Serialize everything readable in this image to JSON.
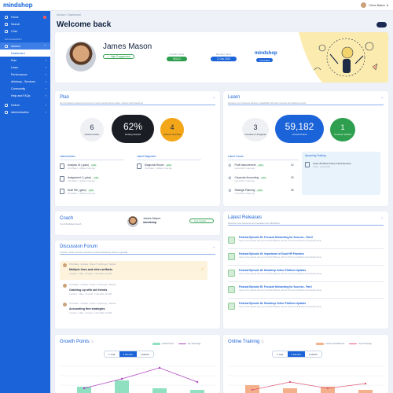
{
  "app": {
    "logo": "mindshop",
    "user_name": "Chris Baker"
  },
  "sidebar": {
    "top": [
      {
        "label": "Home",
        "badge": true
      },
      {
        "label": "Search"
      },
      {
        "label": "Chat"
      }
    ],
    "section": "MANAGEMENT",
    "advisor": {
      "label": "Advisor"
    },
    "sub": [
      {
        "label": "Dashboard"
      },
      {
        "label": "Plan"
      },
      {
        "label": "Learn"
      },
      {
        "label": "Performance"
      },
      {
        "label": "Advisory - Services"
      },
      {
        "label": "Community"
      },
      {
        "label": "Help and FAQs"
      }
    ],
    "bottom": [
      {
        "label": "Deliver"
      },
      {
        "label": "Administration"
      }
    ]
  },
  "breadcrumb": "Advisor / Dashboard",
  "page_title": "Welcome back",
  "profile": {
    "name": "James Mason",
    "engagement": "High Engagement",
    "growth_points_label": "Growth Points",
    "growth_points": "59,812",
    "member_since_label": "Member Since",
    "member_since": "2, Dec 2013",
    "brand": "mindshop",
    "brand_tag": "Accredited"
  },
  "plan": {
    "title": "Plan",
    "subtitle": "Get consistent support around your current performance plans, actions and blueprints",
    "actions_active": "6",
    "actions_active_label": "Actions Active",
    "getting_started": "62%",
    "getting_started_label": "Getting Started",
    "actions_overdue": "4",
    "actions_overdue_label": "Actions Overdue",
    "latest_actions_label": "Latest Actions",
    "latest_actions": [
      {
        "title": "Analysis 24 (.gdoc)",
        "pct": "+20%",
        "sub": "Chris Baker · Updated 1 day ago"
      },
      {
        "title": "Assignment 1 (.gdoc)",
        "pct": "+20%",
        "sub": "Chris Baker · Updated 1 day ago"
      },
      {
        "title": "Draft File (.gdoc)",
        "pct": "+20%",
        "sub": "Chris Baker · Updated 1 day ago"
      }
    ],
    "latest_diagnostic_label": "Latest Diagnostic",
    "latest_diagnostic": [
      {
        "title": "Diagnosis Report",
        "pct": "+20%",
        "sub": "Chris Baker · Updated 1 day ago"
      }
    ]
  },
  "learn": {
    "title": "Learn",
    "subtitle": "Develop your business advisory capabilities through courses and training events",
    "courses_in_progress": "3",
    "courses_in_progress_label": "Courses in Progress",
    "growth_points": "59,182",
    "growth_points_label": "Growth Points",
    "courses_verified": "1",
    "courses_verified_label": "Courses Verified",
    "latest_course_label": "Latest Course",
    "latest_course": [
      {
        "title": "Profit Improvement",
        "pct": "+20%",
        "sub": "Last activity: 3 days ago",
        "num": "10"
      },
      {
        "title": "Corporate Accounting",
        "pct": "+20%",
        "sub": "Last activity: 3 days ago",
        "num": "15"
      },
      {
        "title": "Strategic Planning",
        "pct": "+20%",
        "sub": "Last activity: 3 days ago",
        "num": "25"
      }
    ],
    "upcoming_label": "Upcoming Training",
    "upcoming": [
      {
        "title": "Learn All About Azure Cloud Servers",
        "sub": "Virtual · 11 Aug 2021"
      }
    ]
  },
  "coach": {
    "title": "Coach",
    "subtitle": "Your Mindshop Coach",
    "name": "James Mason",
    "brand": "mindshop",
    "button": "Your Coach"
  },
  "forum": {
    "title": "Discussion Forum",
    "subtitle": "Connect, share and find solutions of these Mindshop advisors globally",
    "items": [
      {
        "meta": "Chris Baker · Australia · Posted 7 months ago · Website",
        "title": "Multiple lines and other artifacts",
        "sub": "1 answer · 3 likes · 40 views · 2 Jan 2021, 2:01 AM"
      },
      {
        "meta": "Chris Baker · Australia · Posted 7 months ago · Website",
        "title": "Catching up with old friends",
        "sub": "1 answer · 3 likes · 40 views · 2 Jan 2021, 2:01 AM"
      },
      {
        "meta": "Chris Baker · Australia · Posted 7 months ago · Website",
        "title": "Accounting firm strategies",
        "sub": "1 answer · 3 likes · 40 views · 2 Jan 2021, 2:01 AM"
      }
    ]
  },
  "releases": {
    "title": "Latest Releases",
    "subtitle": "Discover new resources and releases from Mindshop",
    "items": [
      {
        "title": "Podcast Episode 50: Focused Networking for Success - Part II",
        "sub": "Listen to this episode with your host Brett Bristow, with Ian O'Connor of Allinson Accountants Group"
      },
      {
        "title": "Podcast Episode 49: Importance of Good HR Practices",
        "sub": "Listen to this episode with your host Brett Bristow, with Ian O'Connor of Allinson Accountants Group"
      },
      {
        "title": "Podcast Episode 48: Mindshop Online Platform Updates",
        "sub": "Listen to this episode with your host Brett Bristow, with Ian O'Connor of Allinson Accountants Group"
      },
      {
        "title": "Podcast Episode 50: Focused Networking for Success - Part I",
        "sub": "Listen to this episode with your host Brett Bristow, with Ian O'Connor of Allinson Accountants Group"
      },
      {
        "title": "Podcast Episode 48: Mindshop Online Platform Updates",
        "sub": "Listen to this episode with your host Brett Bristow, with Ian O'Connor of Allinson Accountants Group"
      }
    ]
  },
  "growth_chart": {
    "title": "Growth Points",
    "tabs": [
      "1 Year",
      "6 Months",
      "1 Month"
    ],
    "active": 1,
    "legend": [
      "Growth Points",
      "Top 10 Average"
    ],
    "colors": [
      "#8fe0c0",
      "#b146c2"
    ]
  },
  "training_chart": {
    "title": "Online Training",
    "tabs": [
      "1 Year",
      "6 Months",
      "1 Month"
    ],
    "active": 1,
    "legend": [
      "Courses and Webinars",
      "Top 10 Average"
    ],
    "colors": [
      "#f3b08a",
      "#e25b78"
    ]
  }
}
